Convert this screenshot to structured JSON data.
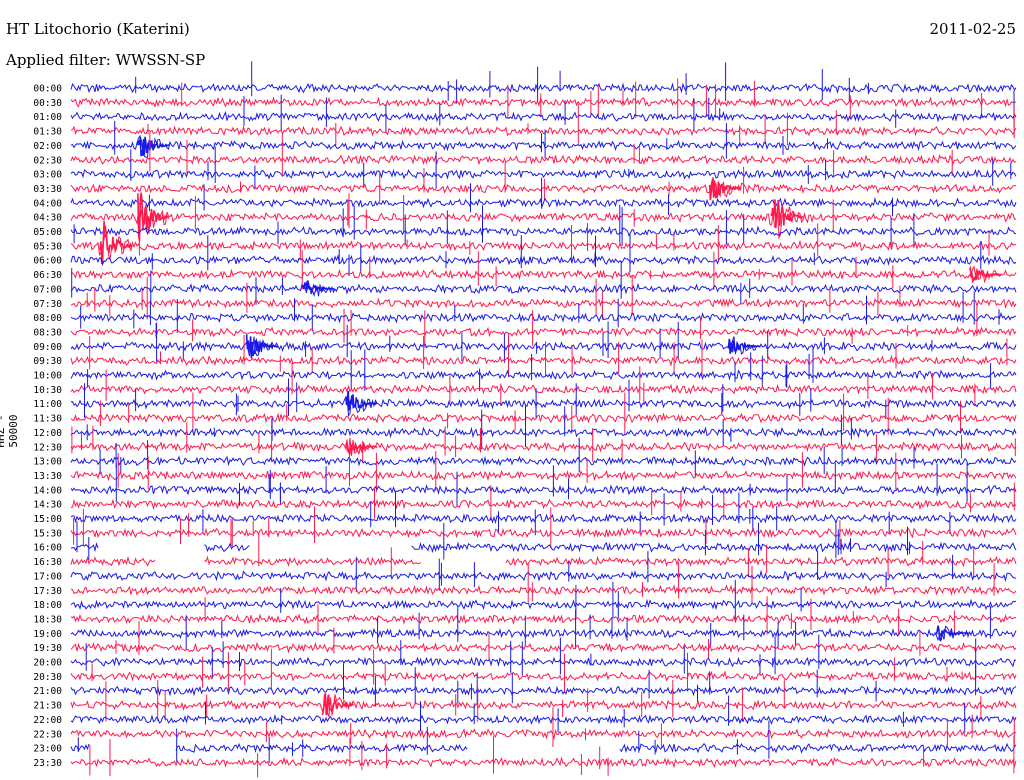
{
  "header": {
    "station": "HT Litochorio (Katerini)",
    "date": "2011-02-25",
    "filter": "Applied filter: WWSSN-SP"
  },
  "channel_label": "HHZ - 50000",
  "colors": {
    "even_row": "#1a1ae6",
    "odd_row": "#ff1a4d"
  },
  "chart_data": {
    "type": "helicorder",
    "title": "HT Litochorio (Katerini)",
    "ylabel": "HHZ - 50000",
    "rows": [
      "00:00",
      "00:30",
      "01:00",
      "01:30",
      "02:00",
      "02:30",
      "03:00",
      "03:30",
      "04:00",
      "04:30",
      "05:00",
      "05:30",
      "06:00",
      "06:30",
      "07:00",
      "07:30",
      "08:00",
      "08:30",
      "09:00",
      "09:30",
      "10:00",
      "10:30",
      "11:00",
      "11:30",
      "12:00",
      "12:30",
      "13:00",
      "13:30",
      "14:00",
      "14:30",
      "15:00",
      "15:30",
      "16:00",
      "16:30",
      "17:00",
      "17:30",
      "18:00",
      "18:30",
      "19:00",
      "19:30",
      "20:00",
      "20:30",
      "21:00",
      "21:30",
      "22:00",
      "22:30",
      "23:00",
      "23:30"
    ],
    "events": [
      {
        "row": "02:00",
        "x": 0.075,
        "amp": "medium"
      },
      {
        "row": "03:30",
        "x": 0.68,
        "amp": "medium"
      },
      {
        "row": "04:30",
        "x": 0.075,
        "amp": "large"
      },
      {
        "row": "04:30",
        "x": 0.745,
        "amp": "large"
      },
      {
        "row": "05:30",
        "x": 0.035,
        "amp": "large"
      },
      {
        "row": "06:30",
        "x": 0.955,
        "amp": "small"
      },
      {
        "row": "07:00",
        "x": 0.25,
        "amp": "small"
      },
      {
        "row": "09:00",
        "x": 0.19,
        "amp": "medium"
      },
      {
        "row": "09:00",
        "x": 0.7,
        "amp": "small"
      },
      {
        "row": "11:00",
        "x": 0.295,
        "amp": "medium"
      },
      {
        "row": "12:30",
        "x": 0.295,
        "amp": "small"
      },
      {
        "row": "19:00",
        "x": 0.92,
        "amp": "small"
      },
      {
        "row": "21:30",
        "x": 0.27,
        "amp": "medium"
      }
    ],
    "gaps": [
      {
        "row": "16:00",
        "from": 0.03,
        "to": 0.14
      },
      {
        "row": "16:00",
        "from": 0.19,
        "to": 0.36
      },
      {
        "row": "16:30",
        "from": 0.09,
        "to": 0.14
      },
      {
        "row": "16:30",
        "from": 0.37,
        "to": 0.46
      },
      {
        "row": "23:00",
        "from": 0.02,
        "to": 0.11
      },
      {
        "row": "23:00",
        "from": 0.42,
        "to": 0.58
      }
    ]
  }
}
